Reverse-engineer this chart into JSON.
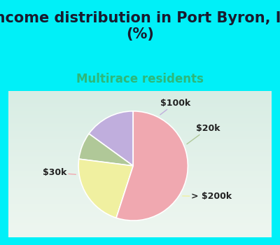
{
  "title": "Income distribution in Port Byron, IL\n(%)",
  "subtitle": "Multirace residents",
  "slices": [
    {
      "label": "$100k",
      "value": 15,
      "color": "#c0aedd"
    },
    {
      "label": "$20k",
      "value": 8,
      "color": "#b0c898"
    },
    {
      "label": "> $200k",
      "value": 22,
      "color": "#f0f0a0"
    },
    {
      "label": "$30k",
      "value": 55,
      "color": "#f0a8b0"
    }
  ],
  "title_fontsize": 15,
  "subtitle_fontsize": 12,
  "subtitle_color": "#2db87a",
  "title_color": "#1a1a2e",
  "bg_outer": "#00f0f8",
  "label_fontsize": 9,
  "startangle": 90
}
